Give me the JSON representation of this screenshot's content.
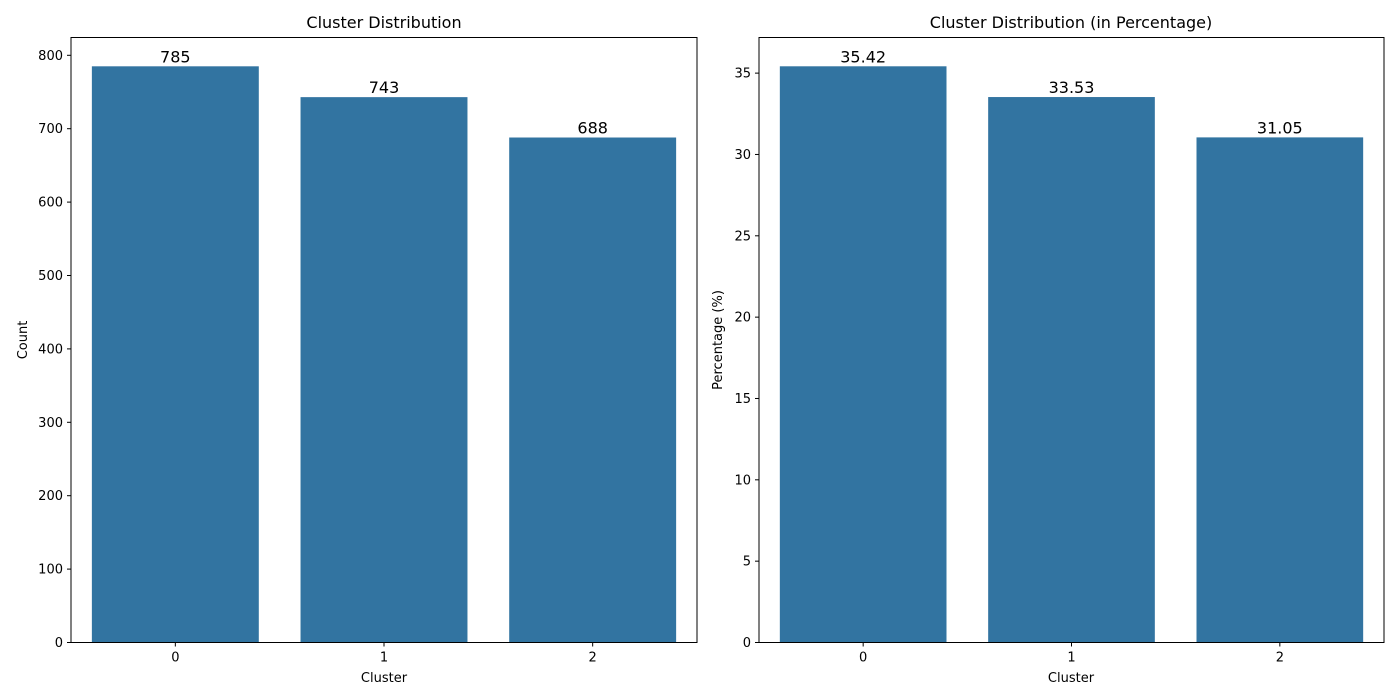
{
  "chart_data": [
    {
      "type": "bar",
      "title": "Cluster Distribution",
      "xlabel": "Cluster",
      "ylabel": "Count",
      "categories": [
        "0",
        "1",
        "2"
      ],
      "values": [
        785,
        743,
        688
      ],
      "value_labels": [
        "785",
        "743",
        "688"
      ],
      "ylim": [
        0,
        824.25
      ],
      "yticks": [
        0,
        100,
        200,
        300,
        400,
        500,
        600,
        700,
        800
      ],
      "bar_color": "#3274a1",
      "grid": false,
      "legend": "none"
    },
    {
      "type": "bar",
      "title": "Cluster Distribution (in Percentage)",
      "xlabel": "Cluster",
      "ylabel": "Percentage (%)",
      "categories": [
        "0",
        "1",
        "2"
      ],
      "values": [
        35.42,
        33.53,
        31.05
      ],
      "value_labels": [
        "35.42",
        "33.53",
        "31.05"
      ],
      "ylim": [
        0,
        37.19
      ],
      "yticks": [
        0,
        5,
        10,
        15,
        20,
        25,
        30,
        35
      ],
      "bar_color": "#3274a1",
      "grid": false,
      "legend": "none"
    }
  ]
}
